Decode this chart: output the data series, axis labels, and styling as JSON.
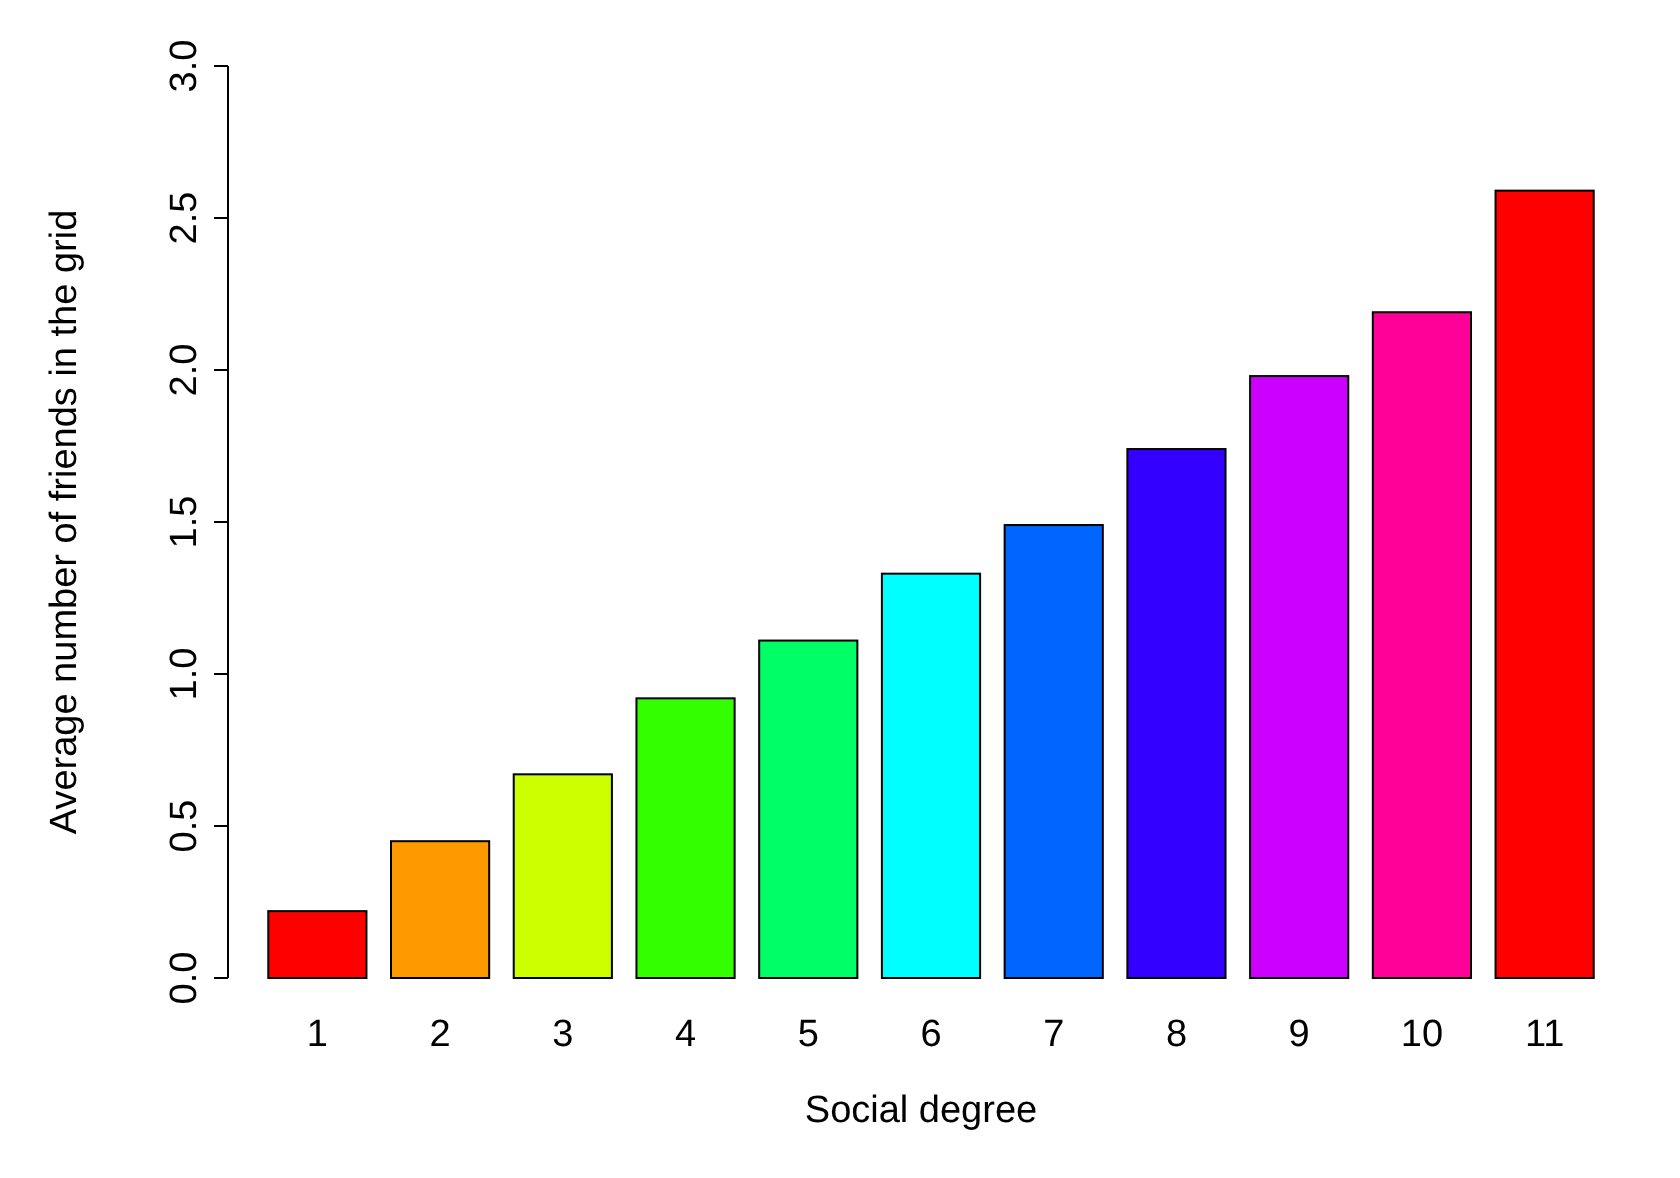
{
  "chart_data": {
    "type": "bar",
    "xlabel": "Social degree",
    "ylabel": "Average number of friends in the grid",
    "categories": [
      "1",
      "2",
      "3",
      "4",
      "5",
      "6",
      "7",
      "8",
      "9",
      "10",
      "11"
    ],
    "values": [
      0.22,
      0.45,
      0.67,
      0.92,
      1.11,
      1.33,
      1.49,
      1.74,
      1.98,
      2.19,
      2.59
    ],
    "colors": [
      "#ff0000",
      "#ff9900",
      "#ccff00",
      "#33ff00",
      "#00ff66",
      "#00ffff",
      "#0066ff",
      "#3300ff",
      "#cc00ff",
      "#ff0099",
      "#ff0000"
    ],
    "ylim": [
      0,
      3
    ],
    "yticks": [
      {
        "value": 0,
        "label": "0.0"
      },
      0.5,
      {
        "value": 1,
        "label": "1.0"
      },
      1.5,
      {
        "value": 2,
        "label": "2.0"
      },
      2.5,
      {
        "value": 3,
        "label": "3.0"
      }
    ],
    "grid": false
  }
}
